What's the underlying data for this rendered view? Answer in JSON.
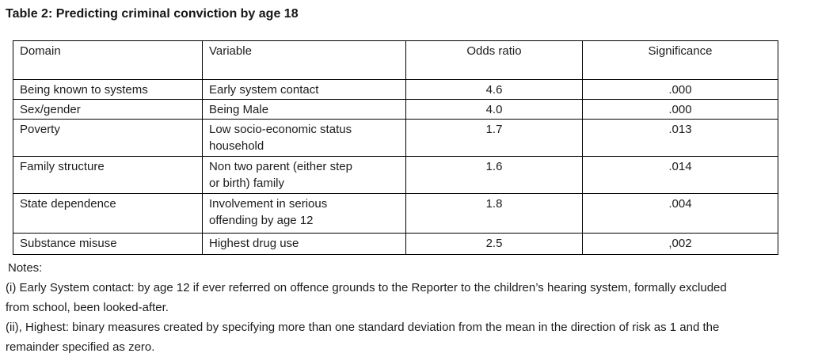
{
  "title": "Table 2: Predicting criminal conviction by age 18",
  "table": {
    "columns": {
      "domain": "Domain",
      "variable": "Variable",
      "odds_ratio": "Odds ratio",
      "significance": "Significance"
    },
    "rows": [
      {
        "domain": "Being known to systems",
        "variable": "Early system contact",
        "odds_ratio": "4.6",
        "significance": ".000"
      },
      {
        "domain": "Sex/gender",
        "variable": "Being Male",
        "odds_ratio": "4.0",
        "significance": ".000"
      },
      {
        "domain": "Poverty",
        "variable": "Low socio-economic status\nhousehold",
        "odds_ratio": "1.7",
        "significance": ".013"
      },
      {
        "domain": "Family structure",
        "variable": "Non two parent (either step\nor birth) family",
        "odds_ratio": "1.6",
        "significance": ".014"
      },
      {
        "domain": "State dependence",
        "variable": "Involvement in serious\noffending by age 12",
        "odds_ratio": "1.8",
        "significance": ".004"
      },
      {
        "domain": "Substance misuse",
        "variable": "Highest drug use",
        "odds_ratio": "2.5",
        "significance": ",002"
      }
    ]
  },
  "notes": {
    "label": "Notes:",
    "items": [
      "(i) Early System contact: by age 12 if ever referred on offence grounds to the Reporter to the children’s hearing system, formally excluded\nfrom school, been looked-after.",
      "(ii), Highest: binary measures created by specifying more than one standard deviation from the mean in the direction of risk as 1 and the\nremainder specified as zero."
    ]
  }
}
